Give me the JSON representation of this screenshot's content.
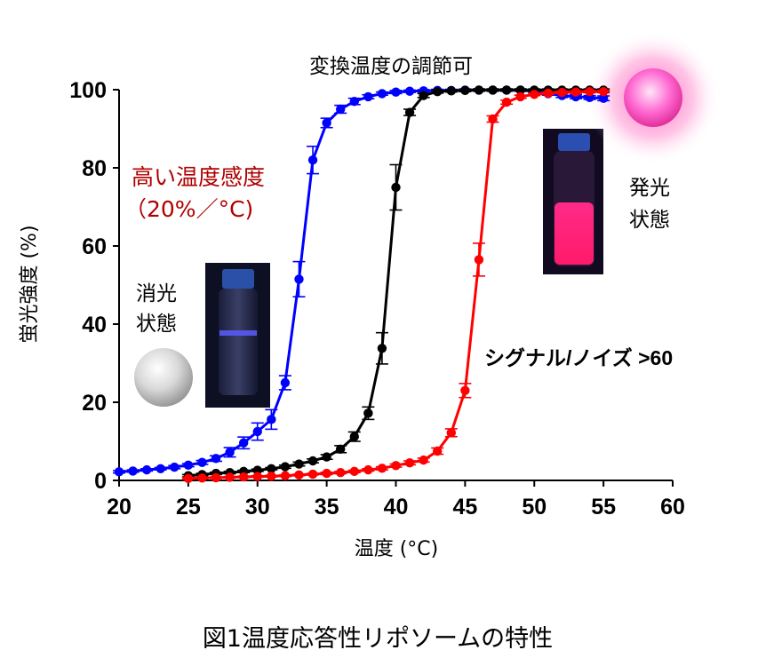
{
  "chart_data": {
    "type": "line",
    "xlabel": "温度 (°C)",
    "ylabel": "蛍光強度 (%)",
    "xlim": [
      20,
      60
    ],
    "ylim": [
      0,
      100
    ],
    "xticks": [
      "20",
      "25",
      "30",
      "35",
      "40",
      "45",
      "50",
      "55",
      "60"
    ],
    "yticks": [
      "0",
      "20",
      "40",
      "60",
      "80",
      "100"
    ],
    "grid": false,
    "series": [
      {
        "color": "#0000ff",
        "x": [
          20,
          21,
          22,
          23,
          24,
          25,
          26,
          27,
          28,
          29,
          30,
          31,
          32,
          33,
          34,
          35,
          36,
          37,
          38,
          39,
          40,
          41,
          42,
          43,
          44,
          45,
          46,
          47,
          48,
          49,
          50,
          51,
          52,
          53,
          54,
          55
        ],
        "values": [
          2.2,
          2.4,
          2.7,
          3.0,
          3.4,
          3.9,
          4.6,
          5.6,
          7.2,
          9.6,
          12.5,
          15.6,
          25,
          51.5,
          82,
          91.5,
          95,
          97,
          98.2,
          99,
          99.4,
          99.6,
          99.7,
          99.8,
          99.8,
          99.9,
          99.9,
          99.9,
          99.9,
          99.9,
          99.5,
          99,
          98.5,
          98.2,
          98,
          97.8
        ],
        "errors": [
          0.3,
          0.3,
          0.3,
          0.3,
          0.4,
          0.4,
          0.5,
          0.7,
          1.2,
          1.5,
          2.2,
          2.5,
          1.8,
          4.5,
          3.5,
          1.2,
          1.0,
          0.8,
          0.5,
          0.4,
          0.4,
          0.3,
          0.3,
          0.3,
          0.3,
          0.3,
          0.3,
          0.3,
          0.3,
          0.3,
          0.4,
          0.4,
          0.5,
          0.5,
          0.5,
          0.6
        ]
      },
      {
        "color": "#000000",
        "x": [
          25,
          26,
          27,
          28,
          29,
          30,
          31,
          32,
          33,
          34,
          35,
          36,
          37,
          38,
          39,
          40,
          41,
          42,
          43,
          44,
          45,
          46,
          47,
          48,
          49,
          50,
          51,
          52,
          53,
          54,
          55
        ],
        "values": [
          1.2,
          1.5,
          1.8,
          2.0,
          2.3,
          2.6,
          3.0,
          3.5,
          4.2,
          5.0,
          6.0,
          8.0,
          11.2,
          17.2,
          33.8,
          75,
          94.2,
          98.5,
          99.5,
          99.7,
          99.8,
          99.9,
          99.9,
          99.9,
          99.9,
          99.9,
          99.9,
          99.9,
          99.9,
          99.9,
          99.9
        ],
        "errors": [
          0.3,
          0.3,
          0.3,
          0.3,
          0.3,
          0.3,
          0.3,
          0.4,
          0.5,
          0.5,
          0.6,
          0.9,
          1.2,
          1.6,
          4.0,
          5.8,
          0.8,
          0.5,
          0.4,
          0.3,
          0.3,
          0.3,
          0.3,
          0.3,
          0.3,
          0.3,
          0.3,
          0.3,
          0.3,
          0.3,
          0.3
        ]
      },
      {
        "color": "#ff0000",
        "x": [
          25,
          26,
          27,
          28,
          29,
          30,
          31,
          32,
          33,
          34,
          35,
          36,
          37,
          38,
          39,
          40,
          41,
          42,
          43,
          44,
          45,
          46,
          47,
          48,
          49,
          50,
          51,
          52,
          53,
          54,
          55
        ],
        "values": [
          0.5,
          0.6,
          0.7,
          0.8,
          0.9,
          1.0,
          1.1,
          1.2,
          1.4,
          1.6,
          1.8,
          2.0,
          2.3,
          2.7,
          3.1,
          3.8,
          4.5,
          5.2,
          7.5,
          12.2,
          23,
          56.5,
          92.5,
          96.8,
          98.2,
          98.8,
          99.1,
          99.3,
          99.4,
          99.5,
          99.5
        ],
        "errors": [
          0.2,
          0.2,
          0.2,
          0.2,
          0.2,
          0.2,
          0.2,
          0.2,
          0.2,
          0.2,
          0.3,
          0.3,
          0.3,
          0.3,
          0.4,
          0.4,
          0.5,
          0.5,
          0.8,
          1.0,
          1.8,
          4.2,
          0.8,
          0.5,
          0.4,
          0.3,
          0.3,
          0.3,
          0.3,
          0.3,
          0.3
        ]
      }
    ]
  },
  "annotations": {
    "top": "変換温度の調節可",
    "sensitivity_line1": "高い温度感度",
    "sensitivity_line2": "（20%／°C)",
    "quenched_line1": "消光",
    "quenched_line2": "状態",
    "emitting_line1": "発光",
    "emitting_line2": "状態",
    "signal_noise": "シグナル/ノイズ >60"
  },
  "caption": "図1温度応答性リポソームの特性"
}
